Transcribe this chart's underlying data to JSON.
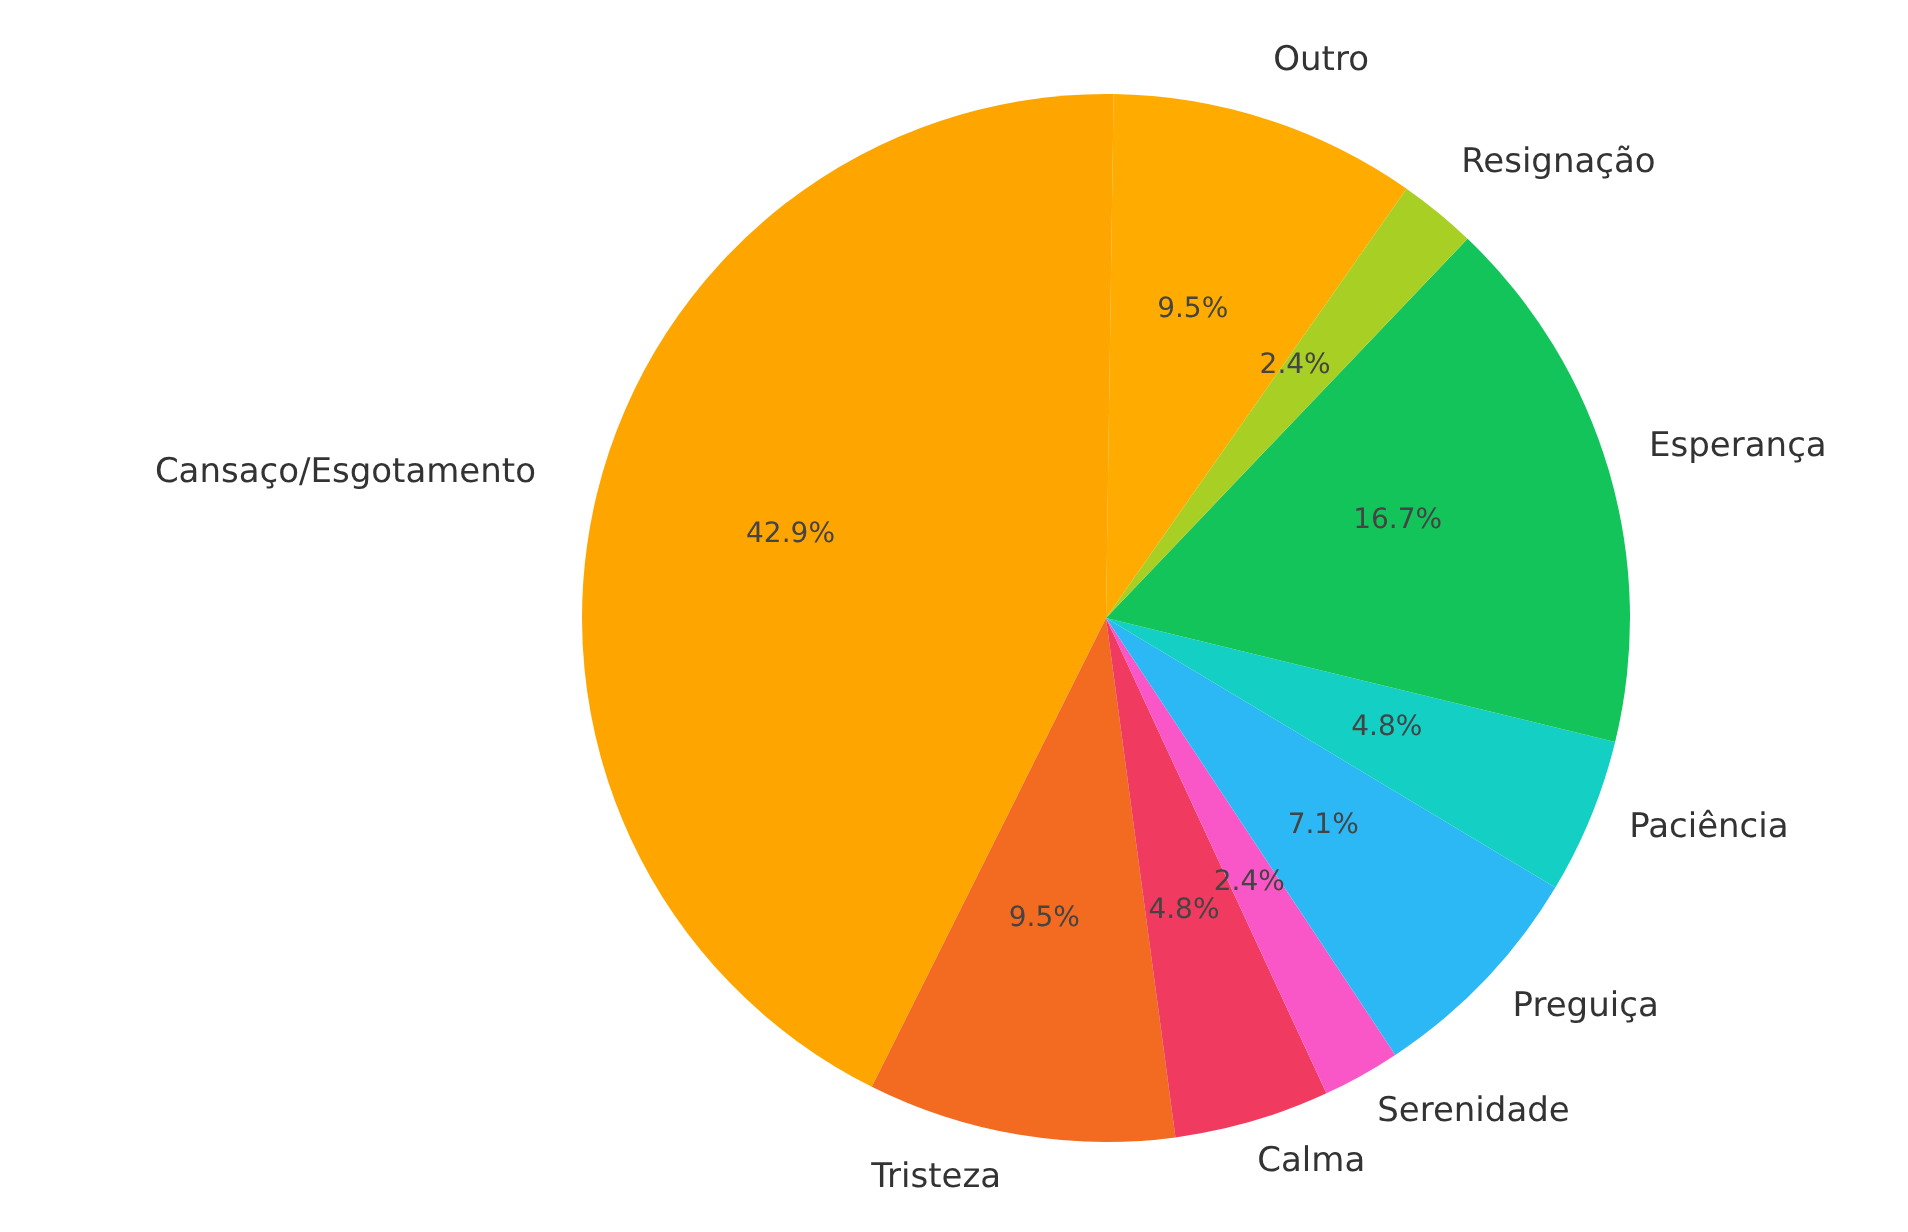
{
  "chart_data": {
    "type": "pie",
    "categories": [
      "Outro",
      "Cansaço/Esgotamento",
      "Tristeza",
      "Calma",
      "Serenidade",
      "Preguiça",
      "Paciência",
      "Esperança",
      "Resignação"
    ],
    "values": [
      9.5,
      42.9,
      9.5,
      4.8,
      2.4,
      7.1,
      4.8,
      16.7,
      2.4
    ],
    "value_labels": [
      "9.5%",
      "42.9%",
      "9.5%",
      "4.8%",
      "2.4%",
      "7.1%",
      "4.8%",
      "16.7%",
      "2.4%"
    ],
    "colors": [
      "#ffab00",
      "#ffa500",
      "#f26b21",
      "#f03a5f",
      "#f957c8",
      "#2bb8f5",
      "#13cfc4",
      "#13c45a",
      "#a8cf24"
    ],
    "legend": false
  }
}
